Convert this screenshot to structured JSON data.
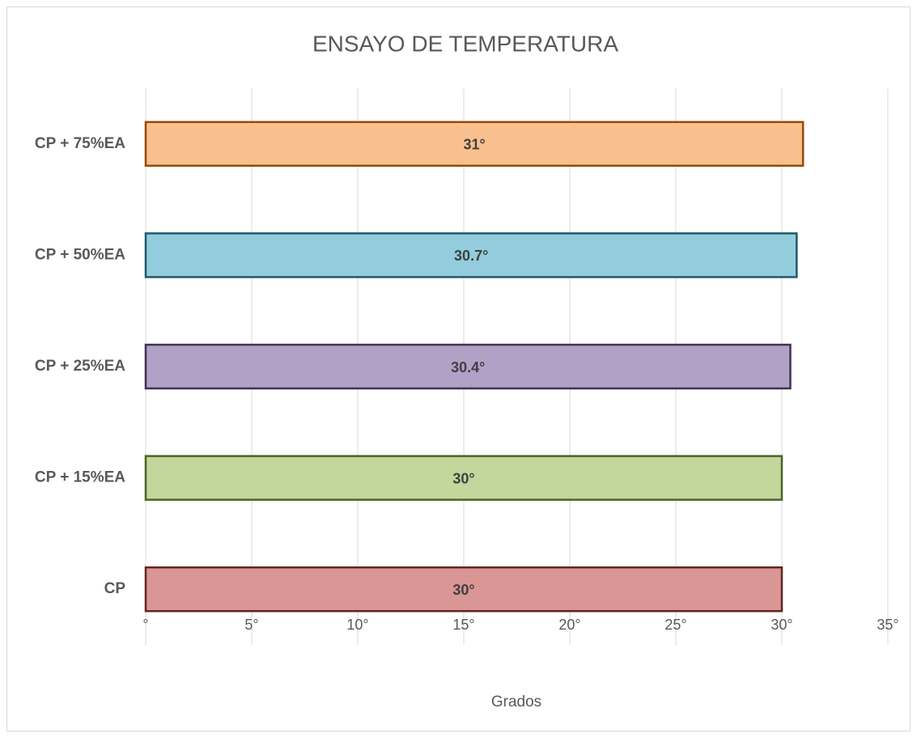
{
  "chart_data": {
    "type": "barh",
    "title": "ENSAYO DE TEMPERATURA",
    "categories": [
      "CP + 75%EA",
      "CP + 50%EA",
      "CP + 25%EA",
      "CP + 15%EA",
      "CP"
    ],
    "values": [
      31,
      30.7,
      30.4,
      30,
      30
    ],
    "value_labels": [
      "31°",
      "30.7°",
      "30.4°",
      "30°",
      "30°"
    ],
    "colors": [
      "#f9c08f",
      "#93cddd",
      "#b2a1c7",
      "#c3d69b",
      "#d99694"
    ],
    "edgecolors": [
      "#984807",
      "#215968",
      "#3f3151",
      "#4f6228",
      "#632523"
    ],
    "xlabel": "Grados",
    "xlim": [
      0,
      35
    ],
    "xticks": [
      {
        "value": 0,
        "label": "°"
      },
      {
        "value": 5,
        "label": "5°"
      },
      {
        "value": 10,
        "label": "10°"
      },
      {
        "value": 15,
        "label": "15°"
      },
      {
        "value": 20,
        "label": "20°"
      },
      {
        "value": 25,
        "label": "25°"
      },
      {
        "value": 30,
        "label": "30°"
      },
      {
        "value": 35,
        "label": "35°"
      }
    ],
    "grid": true
  }
}
